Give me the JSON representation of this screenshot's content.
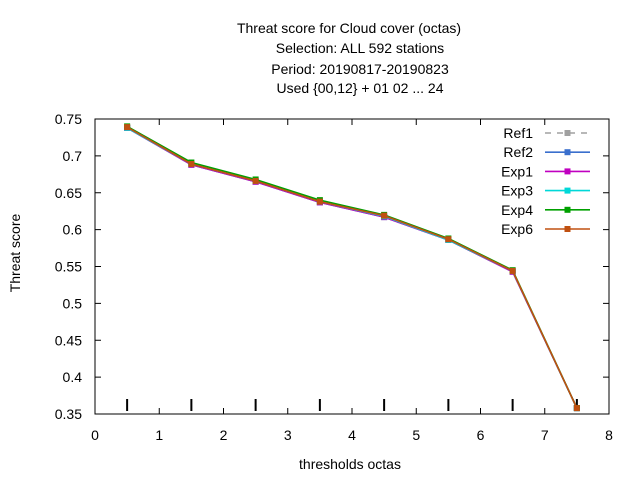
{
  "chart_data": {
    "type": "line",
    "title_lines": [
      "Threat score  for Cloud cover (octas)",
      "Selection: ALL    592 stations",
      "Period: 20190817-20190823",
      "Used {00,12} + 01 02 ... 24"
    ],
    "xlabel": "thresholds octas",
    "ylabel": "Threat score",
    "xlim": [
      0,
      8
    ],
    "ylim": [
      0.35,
      0.75
    ],
    "xticks": [
      "0",
      "1",
      "2",
      "3",
      "4",
      "5",
      "6",
      "7",
      "8"
    ],
    "yticks": [
      "0.35",
      "0.4",
      "0.45",
      "0.5",
      "0.55",
      "0.6",
      "0.65",
      "0.7",
      "0.75"
    ],
    "x": [
      0.5,
      1.5,
      2.5,
      3.5,
      4.5,
      5.5,
      6.5,
      7.5
    ],
    "legend_position": "top-right",
    "series": [
      {
        "name": "Ref1",
        "color": "#a0a0a0",
        "dashed": true,
        "values": [
          0.738,
          0.688,
          0.665,
          0.637,
          0.617,
          0.586,
          0.543,
          0.358
        ]
      },
      {
        "name": "Ref2",
        "color": "#3a6fcd",
        "dashed": false,
        "values": [
          0.738,
          0.688,
          0.665,
          0.637,
          0.617,
          0.586,
          0.543,
          0.358
        ]
      },
      {
        "name": "Exp1",
        "color": "#c000c0",
        "dashed": false,
        "values": [
          0.738,
          0.688,
          0.665,
          0.637,
          0.617,
          0.586,
          0.543,
          0.358
        ]
      },
      {
        "name": "Exp3",
        "color": "#00d8d8",
        "dashed": false,
        "values": [
          0.738,
          0.689,
          0.666,
          0.638,
          0.618,
          0.586,
          0.544,
          0.358
        ]
      },
      {
        "name": "Exp4",
        "color": "#00a000",
        "dashed": false,
        "values": [
          0.74,
          0.691,
          0.668,
          0.64,
          0.62,
          0.588,
          0.545,
          0.358
        ]
      },
      {
        "name": "Exp6",
        "color": "#c05010",
        "dashed": false,
        "values": [
          0.739,
          0.689,
          0.666,
          0.638,
          0.619,
          0.587,
          0.544,
          0.358
        ]
      }
    ]
  }
}
